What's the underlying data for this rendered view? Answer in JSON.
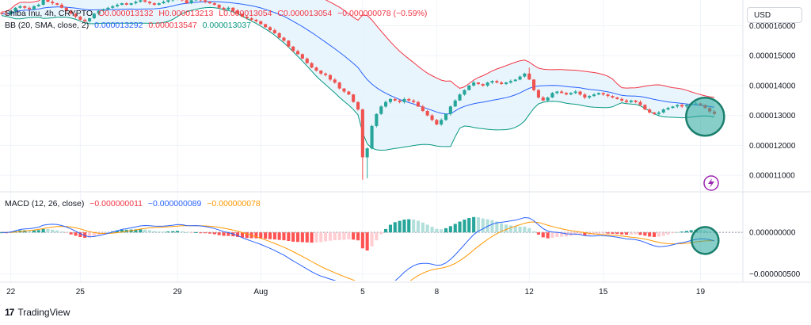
{
  "legend": {
    "symbol": "Shiba Inu, 4h, CRYPTO",
    "open": "O0.000013132",
    "high": "H0.000013213",
    "low": "L0.000013054",
    "close": "C0.000013054",
    "change": "−0.000000078 (−0.59%)",
    "bb_label": "BB (20, SMA, close, 2)",
    "bb_basis": "0.000013292",
    "bb_upper": "0.000013547",
    "bb_lower": "0.000013037",
    "macd_label": "MACD (12, 26, close)",
    "macd_hist": "−0.000000011",
    "macd_line": "−0.000000089",
    "macd_signal": "−0.000000078"
  },
  "currency": "USD",
  "brand": "TradingView",
  "colors": {
    "up": "#26a69a",
    "down": "#ef5350",
    "bb_basis": "#2962ff",
    "bb_band": "#f23645",
    "bb_lower": "#089981",
    "bb_fill": "#e3f2fd",
    "macd_line": "#2962ff",
    "signal_line": "#ff9800",
    "highlight": "#26a69a"
  },
  "chart_data": [
    {
      "type": "candlestick",
      "interval": "4h",
      "ylim": [
        1.05e-05,
        1.67e-05
      ],
      "y_ticks": [
        "0.000016000",
        "0.000015000",
        "0.000014000",
        "0.000013000",
        "0.000012000",
        "0.000011000"
      ],
      "y_tick_values": [
        1.6e-05,
        1.5e-05,
        1.4e-05,
        1.3e-05,
        1.2e-05,
        1.1e-05
      ],
      "x_ticks": [
        "22",
        "25",
        "29",
        "Aug",
        "5",
        "8",
        "12",
        "15",
        "19"
      ],
      "x_tick_index": [
        2,
        17,
        38,
        56,
        78,
        94,
        114,
        130,
        151
      ],
      "series": [
        {
          "name": "close",
          "values": [
            1.64e-05,
            1.638e-05,
            1.648e-05,
            1.66e-05,
            1.665e-05,
            1.66e-05,
            1.655e-05,
            1.665e-05,
            1.67e-05,
            1.69e-05,
            1.68e-05,
            1.675e-05,
            1.67e-05,
            1.66e-05,
            1.65e-05,
            1.64e-05,
            1.63e-05,
            1.62e-05,
            1.615e-05,
            1.625e-05,
            1.64e-05,
            1.65e-05,
            1.655e-05,
            1.66e-05,
            1.665e-05,
            1.67e-05,
            1.675e-05,
            1.67e-05,
            1.675e-05,
            1.68e-05,
            1.685e-05,
            1.68e-05,
            1.675e-05,
            1.67e-05,
            1.675e-05,
            1.68e-05,
            1.685e-05,
            1.69e-05,
            1.695e-05,
            1.685e-05,
            1.675e-05,
            1.685e-05,
            1.69e-05,
            1.685e-05,
            1.68e-05,
            1.675e-05,
            1.67e-05,
            1.66e-05,
            1.655e-05,
            1.66e-05,
            1.65e-05,
            1.64e-05,
            1.63e-05,
            1.625e-05,
            1.62e-05,
            1.615e-05,
            1.605e-05,
            1.595e-05,
            1.585e-05,
            1.575e-05,
            1.56e-05,
            1.55e-05,
            1.53e-05,
            1.515e-05,
            1.505e-05,
            1.49e-05,
            1.475e-05,
            1.46e-05,
            1.45e-05,
            1.44e-05,
            1.435e-05,
            1.42e-05,
            1.41e-05,
            1.39e-05,
            1.38e-05,
            1.37e-05,
            1.345e-05,
            1.32e-05,
            1.16e-05,
            1.19e-05,
            1.265e-05,
            1.305e-05,
            1.33e-05,
            1.345e-05,
            1.355e-05,
            1.35e-05,
            1.345e-05,
            1.355e-05,
            1.35e-05,
            1.345e-05,
            1.33e-05,
            1.315e-05,
            1.3e-05,
            1.285e-05,
            1.27e-05,
            1.285e-05,
            1.305e-05,
            1.33e-05,
            1.35e-05,
            1.37e-05,
            1.385e-05,
            1.4e-05,
            1.41e-05,
            1.405e-05,
            1.4e-05,
            1.41e-05,
            1.415e-05,
            1.41e-05,
            1.405e-05,
            1.41e-05,
            1.415e-05,
            1.42e-05,
            1.43e-05,
            1.44e-05,
            1.42e-05,
            1.385e-05,
            1.36e-05,
            1.35e-05,
            1.36e-05,
            1.375e-05,
            1.38e-05,
            1.375e-05,
            1.37e-05,
            1.375e-05,
            1.38e-05,
            1.37e-05,
            1.36e-05,
            1.365e-05,
            1.37e-05,
            1.375e-05,
            1.37e-05,
            1.365e-05,
            1.36e-05,
            1.355e-05,
            1.35e-05,
            1.345e-05,
            1.35e-05,
            1.345e-05,
            1.335e-05,
            1.32e-05,
            1.31e-05,
            1.305e-05,
            1.31e-05,
            1.32e-05,
            1.325e-05,
            1.33e-05,
            1.335e-05,
            1.33e-05,
            1.335e-05,
            1.34e-05,
            1.34e-05,
            1.335e-05,
            1.325e-05,
            1.313e-05,
            1.305e-05
          ]
        }
      ]
    },
    {
      "type": "bollinger_bands",
      "basis_color": "#2962ff",
      "upper_color": "#f23645",
      "lower_color": "#089981"
    },
    {
      "type": "macd",
      "ylim": [
        -5.8e-07,
        4.5e-07
      ],
      "y_ticks": [
        "0.000000000",
        "−0.000000500"
      ],
      "y_tick_values": [
        0,
        -5e-07
      ]
    }
  ]
}
